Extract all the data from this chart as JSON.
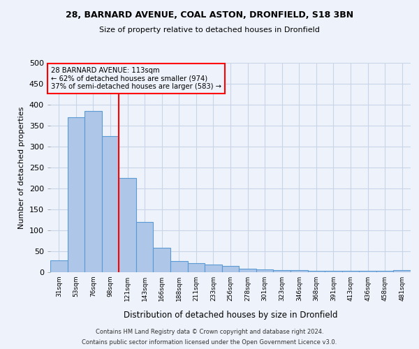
{
  "title1": "28, BARNARD AVENUE, COAL ASTON, DRONFIELD, S18 3BN",
  "title2": "Size of property relative to detached houses in Dronfield",
  "xlabel": "Distribution of detached houses by size in Dronfield",
  "ylabel": "Number of detached properties",
  "footer1": "Contains HM Land Registry data © Crown copyright and database right 2024.",
  "footer2": "Contains public sector information licensed under the Open Government Licence v3.0.",
  "annotation_line1": "28 BARNARD AVENUE: 113sqm",
  "annotation_line2": "← 62% of detached houses are smaller (974)",
  "annotation_line3": "37% of semi-detached houses are larger (583) →",
  "bar_values": [
    28,
    370,
    385,
    325,
    225,
    120,
    58,
    27,
    22,
    18,
    15,
    8,
    6,
    5,
    5,
    3,
    3,
    3,
    3,
    3,
    5
  ],
  "bin_labels": [
    "31sqm",
    "53sqm",
    "76sqm",
    "98sqm",
    "121sqm",
    "143sqm",
    "166sqm",
    "188sqm",
    "211sqm",
    "233sqm",
    "256sqm",
    "278sqm",
    "301sqm",
    "323sqm",
    "346sqm",
    "368sqm",
    "391sqm",
    "413sqm",
    "436sqm",
    "458sqm",
    "481sqm"
  ],
  "bar_color": "#aec6e8",
  "bar_edge_color": "#5b9bd5",
  "bar_edge_width": 0.8,
  "grid_color": "#c8d4e8",
  "background_color": "#eef2fa",
  "property_line_x": 3.5,
  "property_line_color": "red",
  "annotation_box_color": "red",
  "ylim": [
    0,
    500
  ],
  "yticks": [
    0,
    50,
    100,
    150,
    200,
    250,
    300,
    350,
    400,
    450,
    500
  ]
}
